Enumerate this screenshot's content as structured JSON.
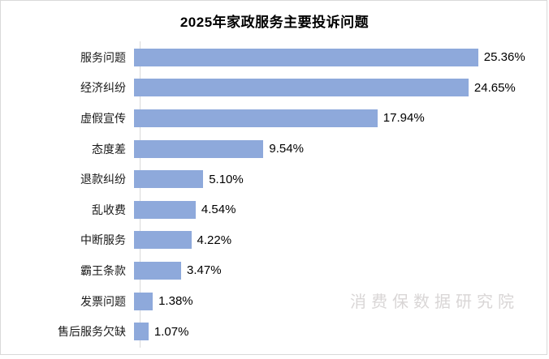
{
  "watermark": "消费保数据研究院",
  "colors": {
    "bar": "#8EA9DB",
    "axis": "#D9D9D9",
    "frame": "#D9D9D9",
    "watermark_text": "#D9D6D6",
    "title_text": "#000000",
    "category_text": "#1A1A1A",
    "value_text": "#000000"
  },
  "chart_data": {
    "type": "bar",
    "orientation": "horizontal",
    "title": "2025年家政服务主要投诉问题",
    "categories": [
      "服务问题",
      "经济纠纷",
      "虚假宣传",
      "态度差",
      "退款纠纷",
      "乱收费",
      "中断服务",
      "霸王条款",
      "发票问题",
      "售后服务欠缺"
    ],
    "values": [
      25.36,
      24.65,
      17.94,
      9.54,
      5.1,
      4.54,
      4.22,
      3.47,
      1.38,
      1.07
    ],
    "value_labels": [
      "25.36%",
      "24.65%",
      "17.94%",
      "9.54%",
      "5.10%",
      "4.54%",
      "4.22%",
      "3.47%",
      "1.38%",
      "1.07%"
    ],
    "xlabel": "",
    "ylabel": "",
    "xlim": [
      0,
      29.5
    ],
    "grid": false,
    "legend": false,
    "data_labels": "outside-end",
    "sorted": "descending"
  }
}
